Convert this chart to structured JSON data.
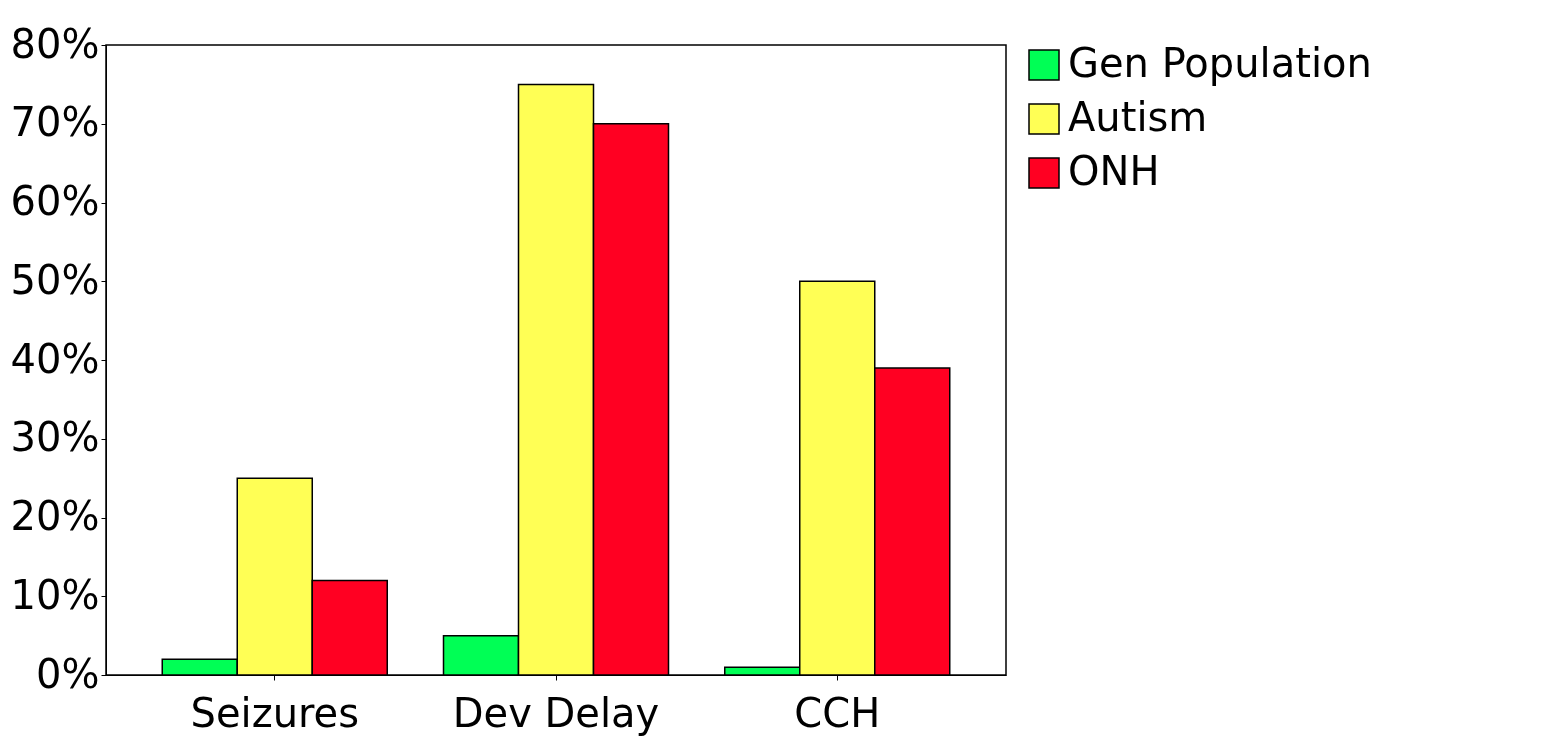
{
  "chart_data": {
    "type": "bar",
    "categories": [
      "Seizures",
      "Dev Delay",
      "CCH"
    ],
    "series": [
      {
        "name": "Gen Population",
        "color": "#00ff55",
        "values": [
          2,
          5,
          1
        ]
      },
      {
        "name": "Autism",
        "color": "#ffff55",
        "values": [
          25,
          75,
          50
        ]
      },
      {
        "name": "ONH",
        "color": "#ff0022",
        "values": [
          12,
          70,
          39
        ]
      }
    ],
    "ylim": [
      0,
      80
    ],
    "yticks": [
      {
        "value": 0,
        "label": "0%"
      },
      {
        "value": 10,
        "label": "10%"
      },
      {
        "value": 20,
        "label": "20%"
      },
      {
        "value": 30,
        "label": "30%"
      },
      {
        "value": 40,
        "label": "40%"
      },
      {
        "value": 50,
        "label": "50%"
      },
      {
        "value": 60,
        "label": "60%"
      },
      {
        "value": 70,
        "label": "70%"
      },
      {
        "value": 80,
        "label": "80%"
      }
    ],
    "grid": false,
    "legend": "right"
  }
}
